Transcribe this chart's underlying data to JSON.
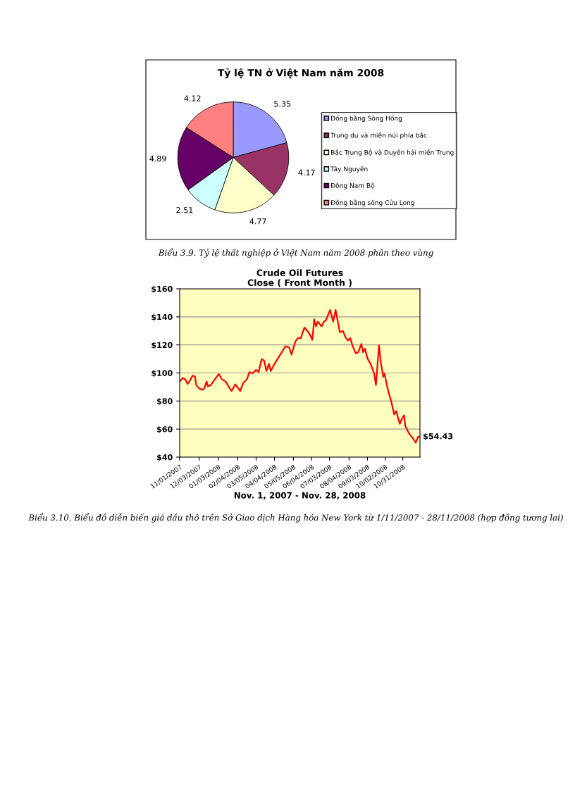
{
  "chart_data": [
    {
      "type": "pie",
      "title": "Tỷ lệ TN ở Việt Nam năm 2008",
      "categories": [
        "Đồng bằng Sông Hồng",
        "Trung du và miền núi phía bắc",
        "Bắc Trung Bộ và Duyên hải miền Trung",
        "Tây Nguyên",
        "Đông Nam Bộ",
        "Đồng bằng sông Cửu Long"
      ],
      "values": [
        5.35,
        4.17,
        4.77,
        2.51,
        4.89,
        4.12
      ],
      "colors": [
        "#9999ff",
        "#993366",
        "#ffffcc",
        "#ccffff",
        "#660066",
        "#ff8080"
      ],
      "data_labels": true,
      "legend": "right",
      "annotations": [
        "Biểu 3.9. Tỷ lệ thất nghiệp ở Việt Nam năm 2008 phân theo vùng"
      ]
    },
    {
      "type": "line",
      "title": "Crude Oil Futures",
      "subtitle": "Close ( Front Month )",
      "xlabel": "Nov. 1, 2007 - Nov. 28, 2008",
      "x": [
        "2007-11-01",
        "2007-11-06",
        "2007-11-10",
        "2007-11-14",
        "2007-11-18",
        "2007-11-22",
        "2007-11-26",
        "2007-11-28",
        "2007-12-03",
        "2007-12-08",
        "2007-12-11",
        "2007-12-15",
        "2007-12-17",
        "2007-12-22",
        "2007-12-30",
        "2008-01-04",
        "2008-01-09",
        "2008-01-15",
        "2008-01-21",
        "2008-01-25",
        "2008-01-31",
        "2008-02-04",
        "2008-02-08",
        "2008-02-13",
        "2008-02-19",
        "2008-02-23",
        "2008-02-28",
        "2008-03-05",
        "2008-03-09",
        "2008-03-14",
        "2008-03-18",
        "2008-03-22",
        "2008-03-26",
        "2008-03-29",
        "2008-04-04",
        "2008-04-10",
        "2008-04-16",
        "2008-04-22",
        "2008-04-28",
        "2008-05-02",
        "2008-05-08",
        "2008-05-12",
        "2008-05-17",
        "2008-05-23",
        "2008-05-28",
        "2008-06-01",
        "2008-06-05",
        "2008-06-08",
        "2008-06-11",
        "2008-06-14",
        "2008-06-20",
        "2008-06-24",
        "2008-06-27",
        "2008-07-04",
        "2008-07-09",
        "2008-07-13",
        "2008-07-17",
        "2008-07-20",
        "2008-07-25",
        "2008-07-29",
        "2008-08-02",
        "2008-08-06",
        "2008-08-10",
        "2008-08-15",
        "2008-08-19",
        "2008-08-24",
        "2008-08-27",
        "2008-08-30",
        "2008-09-03",
        "2008-09-09",
        "2008-09-14",
        "2008-09-17",
        "2008-09-22",
        "2008-09-25",
        "2008-09-29",
        "2008-10-01",
        "2008-10-06",
        "2008-10-12",
        "2008-10-17",
        "2008-10-20",
        "2008-10-26",
        "2008-10-29",
        "2008-11-02",
        "2008-11-04",
        "2008-11-10",
        "2008-11-16",
        "2008-11-21",
        "2008-11-25",
        "2008-11-28"
      ],
      "series": [
        {
          "color": "#ff0000",
          "values": [
            93.9,
            96.4,
            95.5,
            92.2,
            94.7,
            98.1,
            97.5,
            91.4,
            88.9,
            88.0,
            88.9,
            93.9,
            90.5,
            91.4,
            96.4,
            99.2,
            95.5,
            93.9,
            89.7,
            87.2,
            91.9,
            89.7,
            87.2,
            93.0,
            95.5,
            100.6,
            99.7,
            102.2,
            100.6,
            109.8,
            108.9,
            101.4,
            106.5,
            101.4,
            106.5,
            110.6,
            114.8,
            119.0,
            118.2,
            113.1,
            122.3,
            124.8,
            124.8,
            132.4,
            129.9,
            127.4,
            123.6,
            138.2,
            133.2,
            136.6,
            133.2,
            136.6,
            137.4,
            144.9,
            136.6,
            144.9,
            135.7,
            129.0,
            129.9,
            125.7,
            123.2,
            124.8,
            119.0,
            114.0,
            114.8,
            120.7,
            114.8,
            117.3,
            110.6,
            105.6,
            99.7,
            91.4,
            119.8,
            107.3,
            97.2,
            99.7,
            88.9,
            79.6,
            70.4,
            72.9,
            63.7,
            67.0,
            69.9,
            62.1,
            57.0,
            53.7,
            50.3,
            54.5,
            54.43
          ]
        }
      ],
      "xlim": [
        "2007-11-01",
        "2008-11-28"
      ],
      "xticks": [
        {
          "value": "2007-11-01",
          "label": "11/01/2007"
        },
        {
          "value": "2007-12-03",
          "label": "12/03/2007"
        },
        {
          "value": "2008-01-03",
          "label": "01/03/2008"
        },
        {
          "value": "2008-02-04",
          "label": "02/04/2008"
        },
        {
          "value": "2008-03-05",
          "label": "03/05/2008"
        },
        {
          "value": "2008-04-04",
          "label": "04/04/2008"
        },
        {
          "value": "2008-05-05",
          "label": "05/05/2008"
        },
        {
          "value": "2008-06-04",
          "label": "06/04/2008"
        },
        {
          "value": "2008-07-03",
          "label": "07/03/2008"
        },
        {
          "value": "2008-08-04",
          "label": "08/04/2008"
        },
        {
          "value": "2008-09-03",
          "label": "09/03/2008"
        },
        {
          "value": "2008-10-02",
          "label": "10/02/2008"
        },
        {
          "value": "2008-10-31",
          "label": "10/31/2008"
        }
      ],
      "ylim": [
        40,
        160
      ],
      "yticks": [
        {
          "value": 40,
          "label": "$40"
        },
        {
          "value": 60,
          "label": "$60"
        },
        {
          "value": 80,
          "label": "$80"
        },
        {
          "value": 100,
          "label": "$100"
        },
        {
          "value": 120,
          "label": "$120"
        },
        {
          "value": 140,
          "label": "$140"
        },
        {
          "value": 160,
          "label": "$160"
        }
      ],
      "grid": "y",
      "legend": false,
      "marker": "none",
      "line_style": "solid",
      "annotations": [
        {
          "text": "$54.43",
          "x": "2008-11-28",
          "y": 54.43
        },
        "Biểu 3.10. Biểu đồ diễn biến giá dầu thô trên Sở Giao dịch Hàng hóa New York từ 1/11/2007 - 28/11/2008 (hợp đồng tương lai)"
      ]
    }
  ]
}
